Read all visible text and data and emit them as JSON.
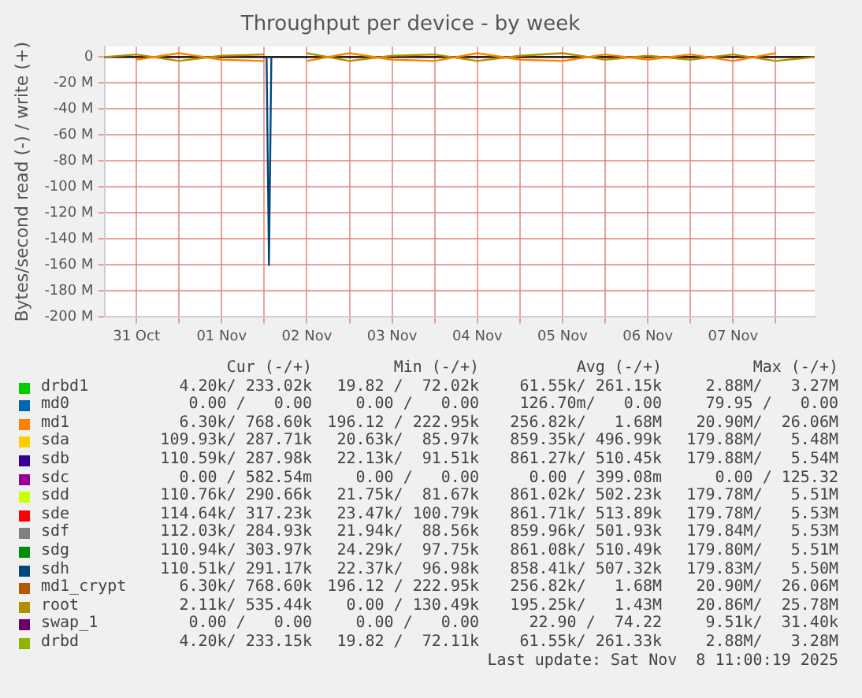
{
  "chart_data": {
    "type": "line",
    "title": "Throughput per device - by week",
    "ylabel": "Bytes/second read (-) / write (+)",
    "x": [
      "2025-10-31T03:00",
      "2025-10-31T12:00",
      "2025-11-01T00:00",
      "2025-11-01T12:00",
      "2025-11-02T00:00",
      "2025-11-02T01:20",
      "2025-11-02T03:00",
      "2025-11-02T12:00",
      "2025-11-03T00:00",
      "2025-11-03T12:00",
      "2025-11-04T00:00",
      "2025-11-04T12:00",
      "2025-11-05T00:00",
      "2025-11-05T12:00",
      "2025-11-06T00:00",
      "2025-11-06T12:00",
      "2025-11-07T00:00",
      "2025-11-07T12:00",
      "2025-11-08T00:00",
      "2025-11-08T11:00"
    ],
    "xlim": [
      "2025-10-31T03:00",
      "2025-11-08T11:00"
    ],
    "xticks": [
      {
        "value": "2025-10-31T12:00",
        "label": "31 Oct"
      },
      {
        "value": "2025-11-01T00:00",
        "label": null
      },
      {
        "value": "2025-11-01T12:00",
        "label": "01 Nov"
      },
      {
        "value": "2025-11-02T00:00",
        "label": null
      },
      {
        "value": "2025-11-02T12:00",
        "label": "02 Nov"
      },
      {
        "value": "2025-11-03T00:00",
        "label": null
      },
      {
        "value": "2025-11-03T12:00",
        "label": "03 Nov"
      },
      {
        "value": "2025-11-04T00:00",
        "label": null
      },
      {
        "value": "2025-11-04T12:00",
        "label": "04 Nov"
      },
      {
        "value": "2025-11-05T00:00",
        "label": null
      },
      {
        "value": "2025-11-05T12:00",
        "label": "05 Nov"
      },
      {
        "value": "2025-11-06T00:00",
        "label": null
      },
      {
        "value": "2025-11-06T12:00",
        "label": "06 Nov"
      },
      {
        "value": "2025-11-07T00:00",
        "label": null
      },
      {
        "value": "2025-11-07T12:00",
        "label": "07 Nov"
      },
      {
        "value": "2025-11-08T00:00",
        "label": null
      }
    ],
    "ylim": [
      -200,
      8
    ],
    "yticks": [
      {
        "value": -200,
        "label": "-200 M"
      },
      {
        "value": -180,
        "label": "-180 M"
      },
      {
        "value": -160,
        "label": "-160 M"
      },
      {
        "value": -140,
        "label": "-140 M"
      },
      {
        "value": -120,
        "label": "-120 M"
      },
      {
        "value": -100,
        "label": "-100 M"
      },
      {
        "value": -80,
        "label": "-80 M"
      },
      {
        "value": -60,
        "label": "-60 M"
      },
      {
        "value": -40,
        "label": "-40 M"
      },
      {
        "value": -20,
        "label": "-20 M"
      },
      0
    ],
    "grid": true,
    "legend": "bottom",
    "marker": "none",
    "line_style": "solid",
    "ref_lines": [
      {
        "axis": "y",
        "value": 0,
        "color": "#000000"
      }
    ],
    "series": [
      {
        "name": "drbd1",
        "color": "#00cc00",
        "values": [
          null,
          null,
          null,
          null,
          null,
          null,
          null,
          null,
          null,
          null,
          null,
          null,
          null,
          null,
          null,
          null,
          null,
          null,
          null,
          null
        ]
      },
      {
        "name": "md0",
        "color": "#0066b3",
        "values": [
          null,
          null,
          null,
          null,
          null,
          null,
          null,
          null,
          null,
          null,
          null,
          null,
          null,
          null,
          null,
          null,
          null,
          null,
          null,
          null
        ]
      },
      {
        "name": "md1",
        "color": "#ff8000",
        "values": [
          null,
          -2,
          3,
          -2,
          -3,
          null,
          null,
          -3,
          3,
          -2,
          -3,
          3,
          -2,
          -3,
          2,
          -2,
          2,
          -3,
          3,
          null
        ]
      },
      {
        "name": "sda",
        "color": "#ffcc00",
        "values": [
          null,
          null,
          null,
          null,
          null,
          null,
          null,
          null,
          null,
          null,
          null,
          null,
          null,
          null,
          null,
          null,
          null,
          null,
          null,
          null
        ]
      },
      {
        "name": "sdb",
        "color": "#330099",
        "values": [
          null,
          null,
          null,
          null,
          null,
          null,
          null,
          null,
          null,
          null,
          null,
          null,
          null,
          null,
          null,
          null,
          null,
          null,
          null,
          null
        ]
      },
      {
        "name": "sdc",
        "color": "#990099",
        "values": [
          null,
          null,
          null,
          null,
          null,
          null,
          null,
          null,
          null,
          null,
          null,
          null,
          null,
          null,
          null,
          null,
          null,
          null,
          null,
          null
        ]
      },
      {
        "name": "sdd",
        "color": "#ccff00",
        "values": [
          null,
          null,
          null,
          null,
          null,
          null,
          null,
          null,
          null,
          null,
          null,
          null,
          null,
          null,
          null,
          null,
          null,
          null,
          null,
          null
        ]
      },
      {
        "name": "sde",
        "color": "#ff0000",
        "values": [
          null,
          null,
          null,
          null,
          null,
          null,
          null,
          null,
          null,
          null,
          null,
          null,
          null,
          null,
          null,
          null,
          null,
          null,
          null,
          null
        ]
      },
      {
        "name": "sdf",
        "color": "#808080",
        "values": [
          null,
          null,
          null,
          null,
          null,
          null,
          null,
          null,
          null,
          null,
          null,
          null,
          null,
          null,
          null,
          null,
          null,
          null,
          null,
          null
        ]
      },
      {
        "name": "sdg",
        "color": "#008f00",
        "values": [
          null,
          null,
          null,
          null,
          null,
          null,
          null,
          null,
          null,
          null,
          null,
          null,
          null,
          null,
          null,
          null,
          null,
          null,
          null,
          null
        ]
      },
      {
        "name": "sdh",
        "color": "#00487d",
        "x": [
          "2025-11-02T00:40",
          "2025-11-02T01:20",
          "2025-11-02T02:00"
        ],
        "values": [
          0,
          -160,
          0
        ]
      },
      {
        "name": "md1_crypt",
        "color": "#b35a00",
        "values": [
          null,
          null,
          null,
          null,
          null,
          null,
          null,
          null,
          null,
          null,
          null,
          null,
          null,
          null,
          null,
          null,
          null,
          null,
          null,
          null
        ]
      },
      {
        "name": "root",
        "color": "#b38f00",
        "values": [
          0,
          2,
          -3,
          1,
          2,
          null,
          null,
          3,
          -3,
          1,
          2,
          -3,
          1,
          3,
          -2,
          1,
          -2,
          2,
          -3,
          0
        ]
      },
      {
        "name": "swap_1",
        "color": "#6b006b",
        "values": [
          null,
          null,
          null,
          null,
          null,
          null,
          null,
          null,
          null,
          null,
          null,
          null,
          null,
          null,
          null,
          null,
          null,
          null,
          null,
          null
        ]
      },
      {
        "name": "drbd",
        "color": "#8fb300",
        "values": [
          null,
          null,
          null,
          null,
          null,
          null,
          null,
          null,
          null,
          null,
          null,
          null,
          null,
          null,
          null,
          null,
          null,
          null,
          null,
          null
        ]
      }
    ],
    "annotations": [
      "Cur (-/+)",
      "Min (-/+)",
      "Avg (-/+)",
      "Max (-/+)",
      "4.20k/ 233.02k",
      "19.82 /  72.02k",
      "61.55k/ 261.15k",
      "2.88M/   3.27M",
      "0.00 /   0.00",
      "0.00 /   0.00",
      "126.70m/   0.00",
      "79.95 /   0.00",
      "6.30k/ 768.60k",
      "196.12 / 222.95k",
      "256.82k/   1.68M",
      "20.90M/  26.06M",
      "109.93k/ 287.71k",
      "20.63k/  85.97k",
      "859.35k/ 496.99k",
      "179.88M/   5.48M",
      "110.59k/ 287.98k",
      "22.13k/  91.51k",
      "861.27k/ 510.45k",
      "179.88M/   5.54M",
      "0.00 / 582.54m",
      "0.00 /   0.00",
      "0.00 / 399.08m",
      "0.00 / 125.32",
      "110.76k/ 290.66k",
      "21.75k/  81.67k",
      "861.02k/ 502.23k",
      "179.78M/   5.51M",
      "114.64k/ 317.23k",
      "23.47k/ 100.79k",
      "861.71k/ 513.89k",
      "179.78M/   5.53M",
      "112.03k/ 284.93k",
      "21.94k/  88.56k",
      "859.96k/ 501.93k",
      "179.84M/   5.53M",
      "110.94k/ 303.97k",
      "24.29k/  97.75k",
      "861.08k/ 510.49k",
      "179.80M/   5.51M",
      "110.51k/ 291.17k",
      "22.37k/  96.98k",
      "858.41k/ 507.32k",
      "179.83M/   5.50M",
      "6.30k/ 768.60k",
      "196.12 / 222.95k",
      "256.82k/   1.68M",
      "20.90M/  26.06M",
      "2.11k/ 535.44k",
      "0.00 / 130.49k",
      "195.25k/   1.43M",
      "20.86M/  25.78M",
      "0.00 /   0.00",
      "0.00 /   0.00",
      "22.90 /  74.22",
      "9.51k/  31.40k",
      "4.20k/ 233.15k",
      "19.82 /  72.11k",
      "61.55k/ 261.33k",
      "2.88M/   3.28M",
      "Last update: Sat Nov  8 11:00:19 2025"
    ]
  }
}
